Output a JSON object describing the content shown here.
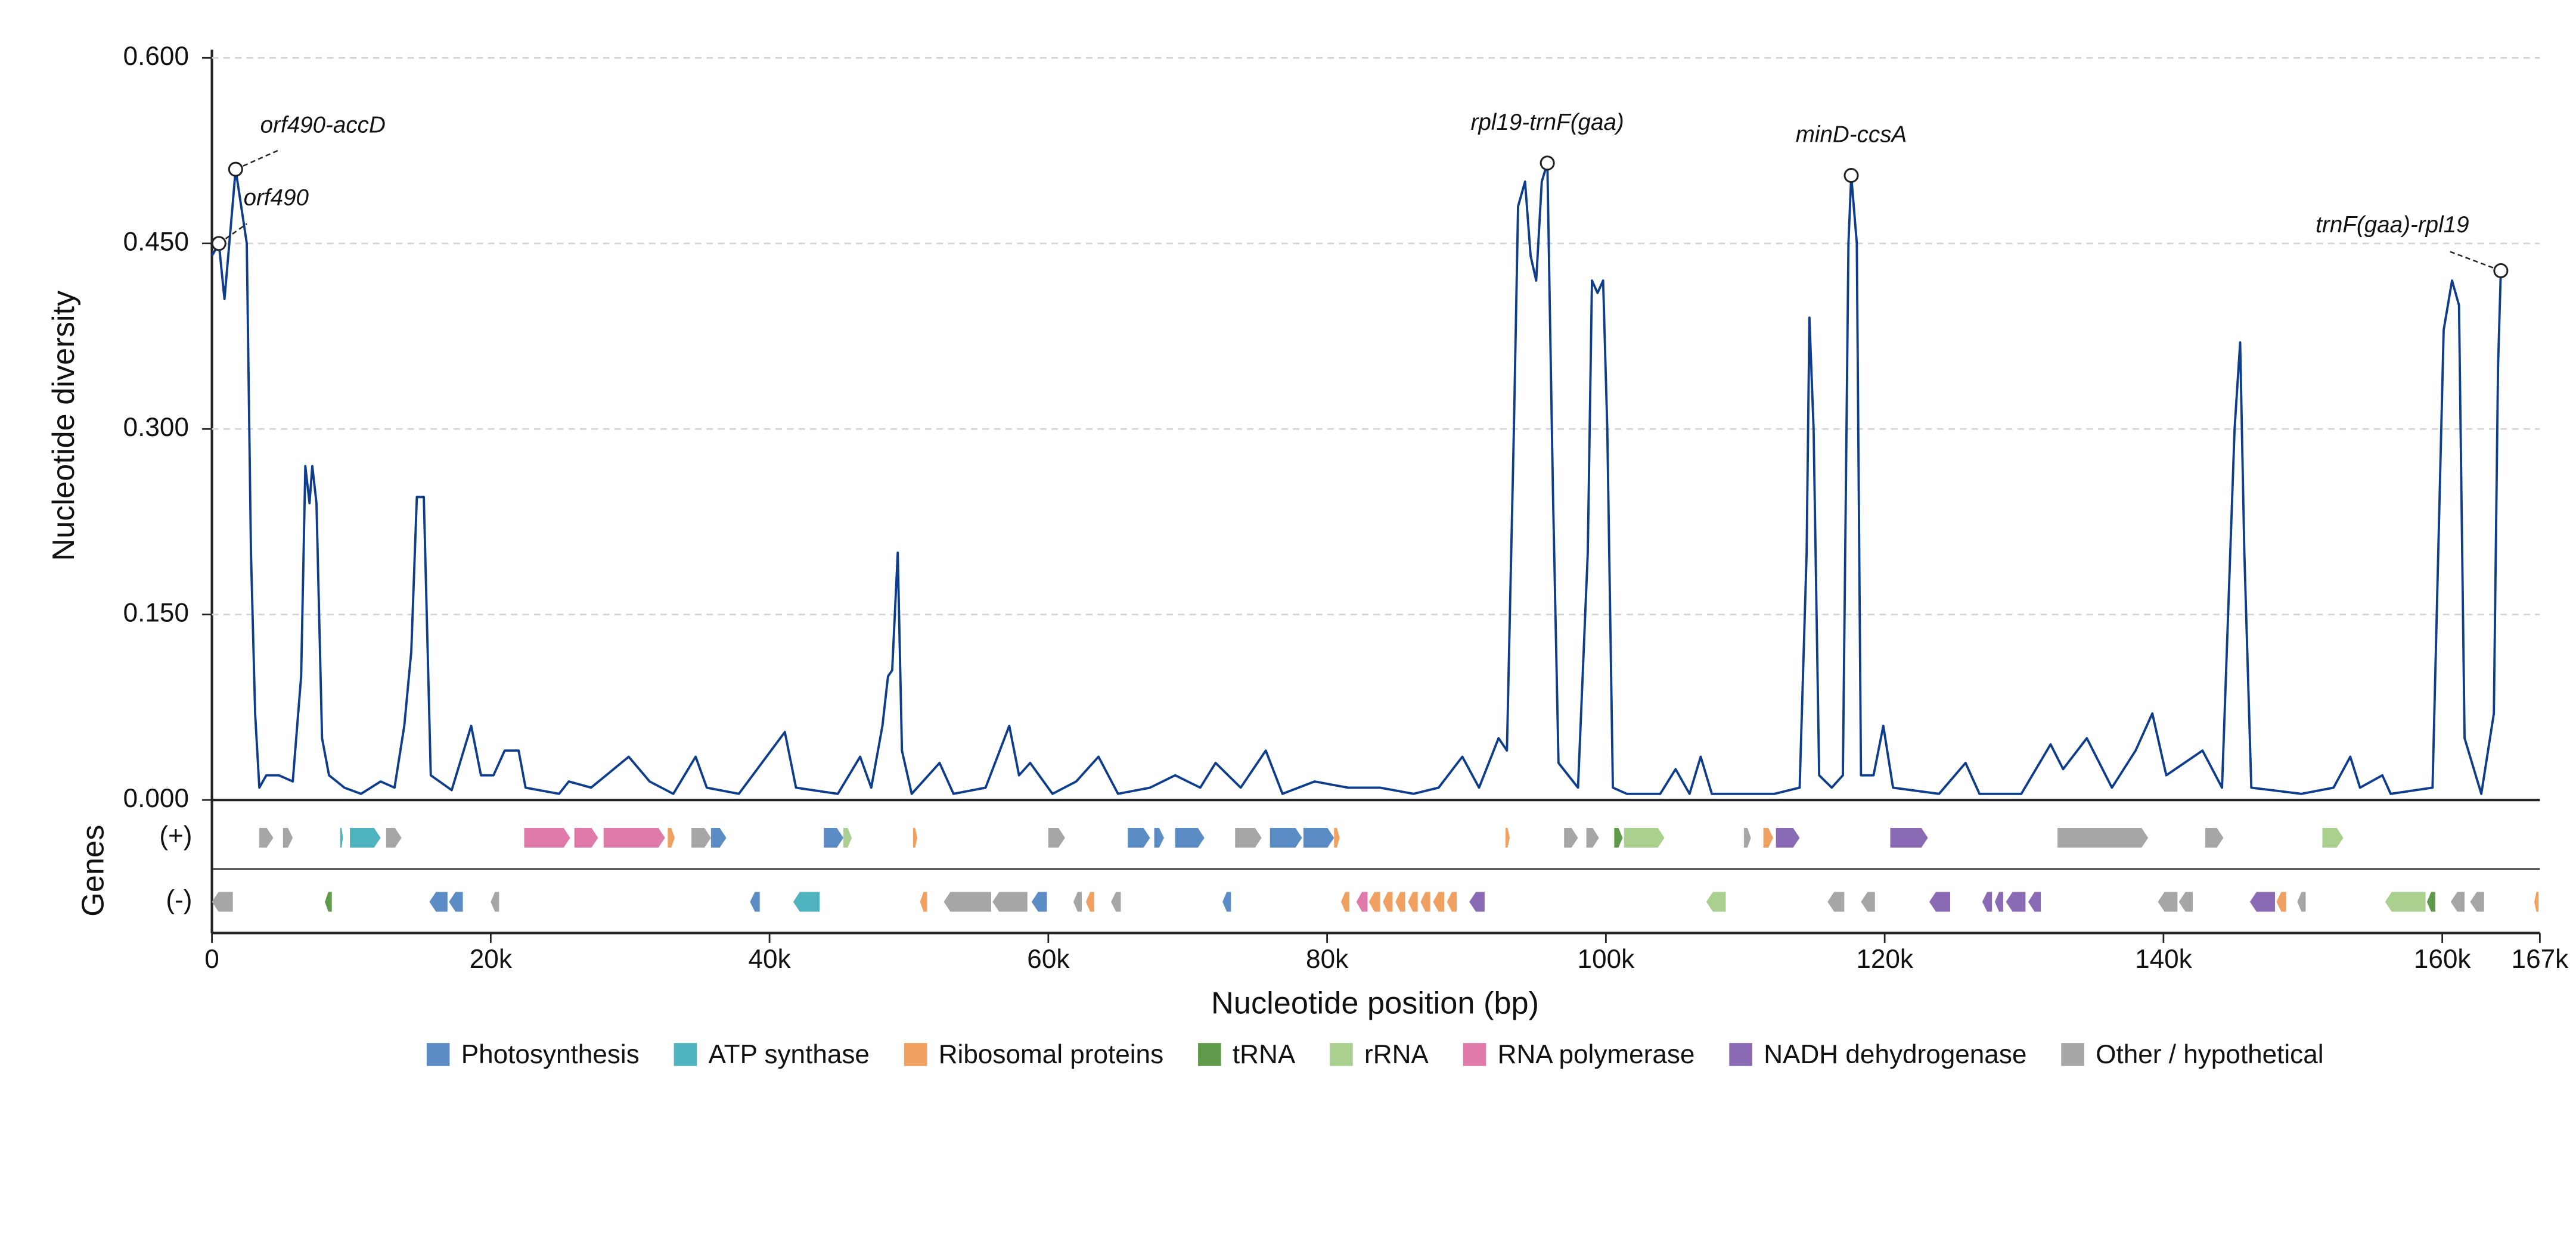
{
  "chart_data": {
    "type": "line",
    "ylabel": "Nucleotide diversity",
    "xlabel": "Nucleotide position (bp)",
    "gene_label": "Genes",
    "color": "#0d3d8c",
    "grid": true,
    "xlim": [
      0,
      167000
    ],
    "ylim": [
      0,
      0.6
    ],
    "xticks": [
      0,
      {
        "value": 20000,
        "label": "20k"
      },
      {
        "value": 40000,
        "label": "40k"
      },
      {
        "value": 60000,
        "label": "60k"
      },
      {
        "value": 80000,
        "label": "80k"
      },
      {
        "value": 100000,
        "label": "100k"
      },
      {
        "value": 120000,
        "label": "120k"
      },
      {
        "value": 140000,
        "label": "140k"
      },
      {
        "value": 160000,
        "label": "160k"
      },
      {
        "value": 167000,
        "label": "167k"
      }
    ],
    "yticks": [
      {
        "value": 0,
        "label": "0.000"
      },
      {
        "value": 0.15,
        "label": "0.150"
      },
      {
        "value": 0.3,
        "label": "0.300"
      },
      {
        "value": 0.45,
        "label": "0.450"
      },
      {
        "value": 0.6,
        "label": "0.600"
      }
    ],
    "x": [
      0,
      500,
      900,
      1400,
      1700,
      2100,
      2500,
      2800,
      3100,
      3400,
      3900,
      4800,
      5800,
      6400,
      6700,
      7000,
      7200,
      7500,
      7900,
      8400,
      9500,
      10700,
      12100,
      13100,
      13800,
      14300,
      14700,
      15200,
      15700,
      17200,
      18600,
      19300,
      20200,
      21000,
      22000,
      22500,
      24900,
      25600,
      27200,
      29900,
      31400,
      33100,
      34700,
      35500,
      37800,
      41100,
      41900,
      44900,
      46500,
      47300,
      48100,
      48500,
      48800,
      49200,
      49500,
      50200,
      52200,
      53200,
      55500,
      57200,
      57900,
      58700,
      60300,
      62000,
      63600,
      65000,
      67300,
      69100,
      70900,
      72000,
      73800,
      75600,
      76800,
      79100,
      81500,
      83800,
      86200,
      88000,
      89700,
      90900,
      92300,
      92900,
      93400,
      93700,
      94200,
      94600,
      95000,
      95400,
      95800,
      96200,
      96600,
      98000,
      98700,
      99000,
      99400,
      99800,
      100100,
      100500,
      101500,
      103900,
      105000,
      106000,
      106800,
      107600,
      109800,
      112100,
      113900,
      114400,
      114600,
      114900,
      115300,
      116200,
      117000,
      117400,
      117600,
      118000,
      118300,
      119200,
      119900,
      120600,
      123900,
      125800,
      126800,
      129800,
      131900,
      132800,
      134500,
      136300,
      138000,
      139200,
      140200,
      142800,
      144200,
      145100,
      145500,
      145800,
      146300,
      149900,
      152200,
      153400,
      154100,
      155700,
      156300,
      159300,
      160100,
      160700,
      161200,
      161600,
      162800,
      163700,
      164000,
      164200
    ],
    "values": [
      0.44,
      0.45,
      0.405,
      0.47,
      0.51,
      0.48,
      0.45,
      0.2,
      0.07,
      0.01,
      0.02,
      0.02,
      0.015,
      0.1,
      0.27,
      0.24,
      0.27,
      0.24,
      0.05,
      0.02,
      0.01,
      0.005,
      0.015,
      0.01,
      0.06,
      0.12,
      0.245,
      0.245,
      0.02,
      0.008,
      0.06,
      0.02,
      0.02,
      0.04,
      0.04,
      0.01,
      0.005,
      0.015,
      0.01,
      0.035,
      0.015,
      0.005,
      0.035,
      0.01,
      0.005,
      0.055,
      0.01,
      0.005,
      0.035,
      0.01,
      0.06,
      0.1,
      0.105,
      0.2,
      0.04,
      0.005,
      0.03,
      0.005,
      0.01,
      0.06,
      0.02,
      0.03,
      0.005,
      0.015,
      0.035,
      0.005,
      0.01,
      0.02,
      0.01,
      0.03,
      0.01,
      0.04,
      0.005,
      0.015,
      0.01,
      0.01,
      0.005,
      0.01,
      0.035,
      0.01,
      0.05,
      0.04,
      0.3,
      0.48,
      0.5,
      0.44,
      0.42,
      0.5,
      0.515,
      0.25,
      0.03,
      0.01,
      0.2,
      0.42,
      0.41,
      0.42,
      0.3,
      0.01,
      0.005,
      0.005,
      0.025,
      0.005,
      0.035,
      0.005,
      0.005,
      0.005,
      0.01,
      0.2,
      0.39,
      0.3,
      0.02,
      0.01,
      0.02,
      0.45,
      0.505,
      0.45,
      0.02,
      0.02,
      0.06,
      0.01,
      0.005,
      0.03,
      0.005,
      0.005,
      0.045,
      0.025,
      0.05,
      0.01,
      0.04,
      0.07,
      0.02,
      0.04,
      0.01,
      0.3,
      0.37,
      0.2,
      0.01,
      0.005,
      0.01,
      0.035,
      0.01,
      0.02,
      0.005,
      0.01,
      0.38,
      0.42,
      0.4,
      0.05,
      0.005,
      0.07,
      0.35,
      0.428
    ],
    "annotations": [
      {
        "text": "orf490-accD",
        "x": 1700,
        "y": 0.51
      },
      {
        "text": "orf490",
        "x": 500,
        "y": 0.45
      },
      {
        "text": "rpl19-trnF(gaa)",
        "x": 95800,
        "y": 0.515
      },
      {
        "text": "minD-ccsA",
        "x": 117600,
        "y": 0.505
      },
      {
        "text": "trnF(gaa)-rpl19",
        "x": 164200,
        "y": 0.428
      }
    ],
    "gene_tracks": [
      "(+)",
      "(-)"
    ],
    "gene_categories": [
      {
        "name": "Photosynthesis",
        "color": "#5b8cc6",
        "tracks": [
          [
            [
              35800,
              36900
            ],
            [
              43900,
              45300
            ],
            [
              65700,
              67300
            ],
            [
              67600,
              68300
            ],
            [
              69100,
              71200
            ],
            [
              75900,
              78200
            ],
            [
              78300,
              80500
            ]
          ],
          [
            [
              15600,
              16900
            ],
            [
              17000,
              18000
            ],
            [
              38600,
              39300
            ],
            [
              58800,
              59900
            ],
            [
              72500,
              73100
            ]
          ]
        ]
      },
      {
        "name": "ATP synthase",
        "color": "#4fb3c0",
        "tracks": [
          [
            [
              9200,
              9400
            ],
            [
              9900,
              12100
            ]
          ],
          [
            [
              41700,
              43600
            ]
          ]
        ]
      },
      {
        "name": "Ribosomal proteins",
        "color": "#f0a060",
        "tracks": [
          [
            [
              32700,
              33200
            ],
            [
              50300,
              50600
            ],
            [
              80500,
              80900
            ],
            [
              92800,
              93100
            ],
            [
              111300,
              112000
            ]
          ],
          [
            [
              50800,
              51300
            ],
            [
              62700,
              63300
            ],
            [
              81000,
              81600
            ],
            [
              83000,
              83800
            ],
            [
              84000,
              84700
            ],
            [
              84900,
              85600
            ],
            [
              85800,
              86500
            ],
            [
              86700,
              87400
            ],
            [
              87600,
              88400
            ],
            [
              88600,
              89300
            ],
            [
              148100,
              148800
            ],
            [
              166600,
              166900
            ]
          ]
        ]
      },
      {
        "name": "tRNA",
        "color": "#5f9a4a",
        "tracks": [
          [
            [
              100600,
              101200
            ]
          ],
          [
            [
              8100,
              8600
            ],
            [
              158900,
              159500
            ]
          ]
        ]
      },
      {
        "name": "rRNA",
        "color": "#a9d08e",
        "tracks": [
          [
            [
              45300,
              45900
            ],
            [
              101300,
              104200
            ],
            [
              151400,
              152900
            ]
          ],
          [
            [
              107200,
              108600
            ],
            [
              155900,
              158800
            ]
          ]
        ]
      },
      {
        "name": "RNA polymerase",
        "color": "#e07aaa",
        "tracks": [
          [
            [
              22400,
              25700
            ],
            [
              26000,
              27700
            ],
            [
              28100,
              32500
            ]
          ],
          [
            [
              82100,
              82900
            ]
          ]
        ]
      },
      {
        "name": "NADH dehydrogenase",
        "color": "#8a6ab5",
        "tracks": [
          [
            [
              112200,
              113900
            ],
            [
              120400,
              123100
            ]
          ],
          [
            [
              90200,
              91300
            ],
            [
              123200,
              124700
            ],
            [
              127000,
              127700
            ],
            [
              127900,
              128500
            ],
            [
              128700,
              130100
            ],
            [
              130300,
              131200
            ],
            [
              146200,
              148000
            ]
          ]
        ]
      },
      {
        "name": "Other / hypothetical",
        "color": "#a6a6a6",
        "tracks": [
          [
            [
              3400,
              4400
            ],
            [
              5100,
              5800
            ],
            [
              12500,
              13600
            ],
            [
              34400,
              35800
            ],
            [
              60000,
              61200
            ],
            [
              73400,
              75300
            ],
            [
              97000,
              98000
            ],
            [
              98600,
              99500
            ],
            [
              109900,
              110400
            ],
            [
              132400,
              138900
            ],
            [
              143000,
              144300
            ]
          ],
          [
            [
              0,
              1500
            ],
            [
              20000,
              20600
            ],
            [
              52500,
              55900
            ],
            [
              56000,
              58500
            ],
            [
              61800,
              62400
            ],
            [
              64500,
              65200
            ],
            [
              115900,
              117100
            ],
            [
              118300,
              119300
            ],
            [
              139600,
              141000
            ],
            [
              141100,
              142100
            ],
            [
              149600,
              150200
            ],
            [
              160600,
              161600
            ],
            [
              162000,
              163000
            ]
          ]
        ]
      }
    ]
  }
}
